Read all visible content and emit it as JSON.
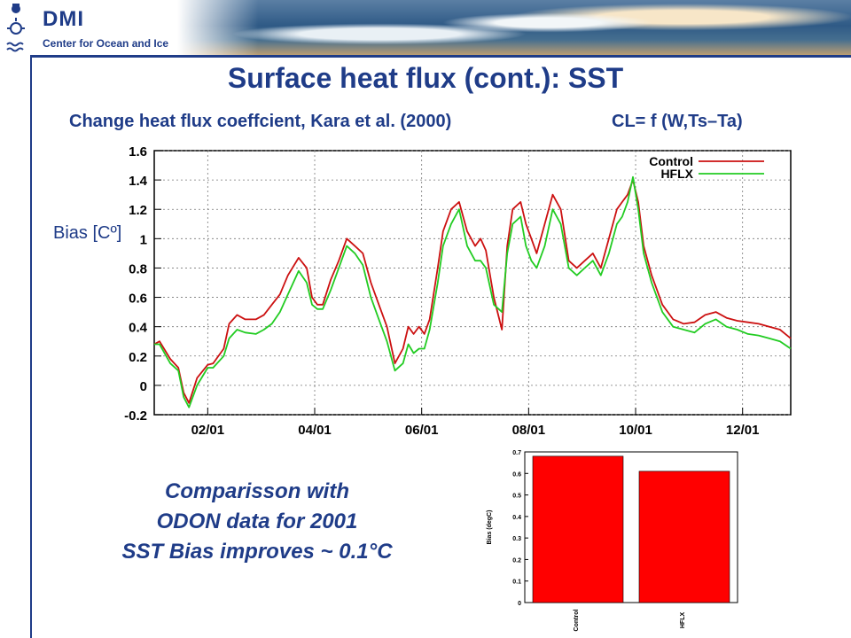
{
  "header": {
    "logo": "DMI",
    "subtitle": "Center for Ocean and Ice"
  },
  "slide": {
    "title": "Surface heat flux (cont.): SST",
    "subtitle": "Change heat flux coeffcient, Kara et al. (2000)",
    "formula": "CL= f (W,Ts–Ta)",
    "comparison_lines": [
      "Comparisson with",
      "ODON data for 2001",
      "SST Bias improves ~ 0.1°C"
    ]
  },
  "colors": {
    "title": "#1f3c88",
    "control": "#cc1111",
    "hflx": "#22cc22",
    "bar": "#ff0000"
  },
  "chart_data": [
    {
      "type": "line",
      "ylabel": "Bias [Cº]",
      "ylim": [
        -0.2,
        1.6
      ],
      "yticks": [
        "1.6",
        "1.4",
        "1.2",
        "1",
        "0.8",
        "0.6",
        "0.4",
        "0.2",
        "0",
        "-0.2"
      ],
      "ytick_values": [
        1.6,
        1.4,
        1.2,
        1,
        0.8,
        0.6,
        0.4,
        0.2,
        0,
        -0.2
      ],
      "xlim": [
        1,
        12.9
      ],
      "xticks": [
        "02/01",
        "04/01",
        "06/01",
        "08/01",
        "10/01",
        "12/01"
      ],
      "xtick_values": [
        2,
        4,
        6,
        8,
        10,
        12
      ],
      "grid": "dotted",
      "legend": "top-right",
      "series": [
        {
          "name": "Control",
          "x": [
            1.0,
            1.1,
            1.3,
            1.45,
            1.55,
            1.65,
            1.8,
            2.0,
            2.1,
            2.3,
            2.4,
            2.55,
            2.7,
            2.9,
            3.05,
            3.2,
            3.35,
            3.5,
            3.7,
            3.85,
            3.95,
            4.05,
            4.15,
            4.3,
            4.45,
            4.6,
            4.75,
            4.9,
            5.05,
            5.2,
            5.35,
            5.5,
            5.65,
            5.75,
            5.85,
            5.95,
            6.05,
            6.15,
            6.3,
            6.4,
            6.55,
            6.7,
            6.85,
            7.0,
            7.1,
            7.2,
            7.35,
            7.5,
            7.6,
            7.7,
            7.85,
            7.95,
            8.05,
            8.15,
            8.3,
            8.45,
            8.6,
            8.75,
            8.9,
            9.05,
            9.2,
            9.35,
            9.5,
            9.65,
            9.75,
            9.85,
            9.95,
            10.05,
            10.15,
            10.3,
            10.5,
            10.7,
            10.9,
            11.1,
            11.3,
            11.5,
            11.7,
            11.9,
            12.1,
            12.3,
            12.5,
            12.7,
            12.9
          ],
          "y": [
            0.28,
            0.3,
            0.18,
            0.12,
            -0.05,
            -0.12,
            0.05,
            0.14,
            0.15,
            0.25,
            0.42,
            0.48,
            0.45,
            0.45,
            0.48,
            0.55,
            0.62,
            0.75,
            0.87,
            0.8,
            0.6,
            0.55,
            0.55,
            0.72,
            0.85,
            1.0,
            0.95,
            0.9,
            0.7,
            0.55,
            0.4,
            0.15,
            0.25,
            0.4,
            0.35,
            0.4,
            0.35,
            0.45,
            0.8,
            1.05,
            1.2,
            1.25,
            1.05,
            0.95,
            1.0,
            0.92,
            0.6,
            0.38,
            0.95,
            1.2,
            1.25,
            1.1,
            1.0,
            0.9,
            1.1,
            1.3,
            1.2,
            0.85,
            0.8,
            0.85,
            0.9,
            0.8,
            1.0,
            1.2,
            1.25,
            1.3,
            1.4,
            1.25,
            0.95,
            0.75,
            0.55,
            0.45,
            0.42,
            0.43,
            0.48,
            0.5,
            0.46,
            0.44,
            0.43,
            0.42,
            0.4,
            0.38,
            0.32
          ]
        },
        {
          "name": "HFLX",
          "x": [
            1.0,
            1.1,
            1.3,
            1.45,
            1.55,
            1.65,
            1.8,
            2.0,
            2.1,
            2.3,
            2.4,
            2.55,
            2.7,
            2.9,
            3.05,
            3.2,
            3.35,
            3.5,
            3.7,
            3.85,
            3.95,
            4.05,
            4.15,
            4.3,
            4.45,
            4.6,
            4.75,
            4.9,
            5.05,
            5.2,
            5.35,
            5.5,
            5.65,
            5.75,
            5.85,
            5.95,
            6.05,
            6.15,
            6.3,
            6.4,
            6.55,
            6.7,
            6.85,
            7.0,
            7.1,
            7.2,
            7.35,
            7.5,
            7.6,
            7.7,
            7.85,
            7.95,
            8.05,
            8.15,
            8.3,
            8.45,
            8.6,
            8.75,
            8.9,
            9.05,
            9.2,
            9.35,
            9.5,
            9.65,
            9.75,
            9.85,
            9.95,
            10.05,
            10.15,
            10.3,
            10.5,
            10.7,
            10.9,
            11.1,
            11.3,
            11.5,
            11.7,
            11.9,
            12.1,
            12.3,
            12.5,
            12.7,
            12.9
          ],
          "y": [
            0.28,
            0.28,
            0.15,
            0.1,
            -0.08,
            -0.15,
            0.0,
            0.12,
            0.12,
            0.2,
            0.32,
            0.38,
            0.36,
            0.35,
            0.38,
            0.42,
            0.5,
            0.62,
            0.78,
            0.7,
            0.55,
            0.52,
            0.52,
            0.65,
            0.8,
            0.95,
            0.9,
            0.82,
            0.6,
            0.45,
            0.3,
            0.1,
            0.15,
            0.28,
            0.22,
            0.25,
            0.25,
            0.38,
            0.7,
            0.95,
            1.1,
            1.2,
            0.95,
            0.85,
            0.85,
            0.8,
            0.55,
            0.5,
            0.9,
            1.1,
            1.15,
            0.95,
            0.85,
            0.8,
            0.95,
            1.2,
            1.1,
            0.8,
            0.75,
            0.8,
            0.85,
            0.75,
            0.9,
            1.1,
            1.15,
            1.25,
            1.42,
            1.2,
            0.9,
            0.7,
            0.5,
            0.4,
            0.38,
            0.36,
            0.42,
            0.45,
            0.4,
            0.38,
            0.35,
            0.34,
            0.32,
            0.3,
            0.25
          ]
        }
      ]
    },
    {
      "type": "bar",
      "ylabel": "Bias (degC)",
      "ylim": [
        0,
        0.7
      ],
      "yticks": [
        "0.7",
        "0.6",
        "0.5",
        "0.4",
        "0.3",
        "0.2",
        "0.1",
        "0"
      ],
      "ytick_values": [
        0.7,
        0.6,
        0.5,
        0.4,
        0.3,
        0.2,
        0.1,
        0
      ],
      "categories": [
        "Control",
        "HFLX"
      ],
      "values": [
        0.68,
        0.61
      ]
    }
  ]
}
